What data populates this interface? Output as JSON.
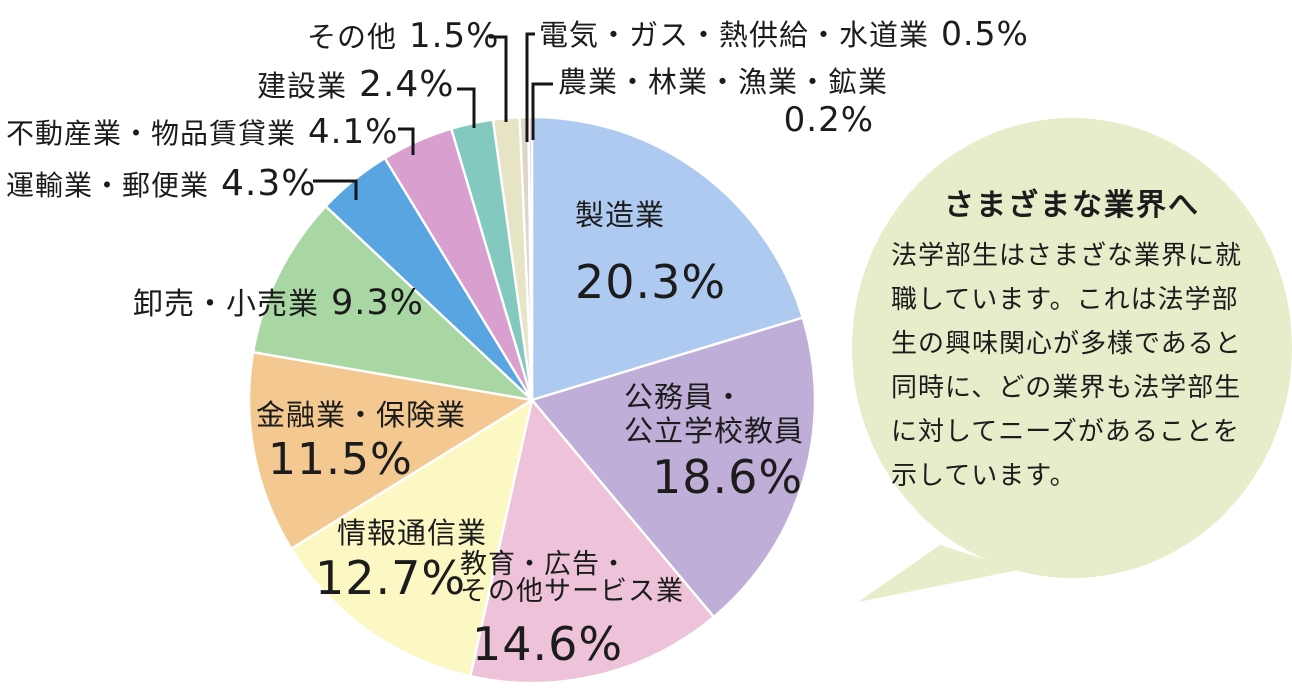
{
  "chart_data": {
    "type": "pie",
    "title": "",
    "legend_position": "none",
    "start_angle_deg": 0,
    "direction": "clockwise",
    "slices": [
      {
        "name": "製造業",
        "value": 20.3,
        "pct": "20.3%",
        "color": "#aecaf1"
      },
      {
        "name": "公務員・公立学校教員",
        "line1": "公務員・",
        "line2": "公立学校教員",
        "value": 18.6,
        "pct": "18.6%",
        "color": "#bfaed8"
      },
      {
        "name": "教育・広告・その他サービス業",
        "line1": "教育・広告・",
        "line2": "その他サービス業",
        "value": 14.6,
        "pct": "14.6%",
        "color": "#eec3d9"
      },
      {
        "name": "情報通信業",
        "value": 12.7,
        "pct": "12.7%",
        "color": "#fbf8c4"
      },
      {
        "name": "金融業・保険業",
        "value": 11.5,
        "pct": "11.5%",
        "color": "#f4c891"
      },
      {
        "name": "卸売・小売業",
        "value": 9.3,
        "pct": "9.3%",
        "color": "#a9d7a4"
      },
      {
        "name": "運輸業・郵便業",
        "value": 4.3,
        "pct": "4.3%",
        "color": "#58a5e2"
      },
      {
        "name": "不動産業・物品賃貸業",
        "value": 4.1,
        "pct": "4.1%",
        "color": "#d9a0cf"
      },
      {
        "name": "建設業",
        "value": 2.4,
        "pct": "2.4%",
        "color": "#84c9bf"
      },
      {
        "name": "その他",
        "value": 1.5,
        "pct": "1.5%",
        "color": "#e6e4c4"
      },
      {
        "name": "電気・ガス・熱供給・水道業",
        "value": 0.5,
        "pct": "0.5%",
        "color": "#dcd6c9"
      },
      {
        "name": "農業・林業・漁業・鉱業",
        "value": 0.2,
        "pct": "0.2%",
        "color": "#f0c3d4"
      }
    ]
  },
  "bubble": {
    "title": "さまざまな業界へ",
    "lines": [
      "法学部生はさまざな業界に就",
      "職しています。これは法学部",
      "生の興味関心が多様であると",
      "同時に、どの業界も法学部生",
      "に対してニーズがあることを",
      "示しています。"
    ],
    "color": "#e9ecca"
  }
}
